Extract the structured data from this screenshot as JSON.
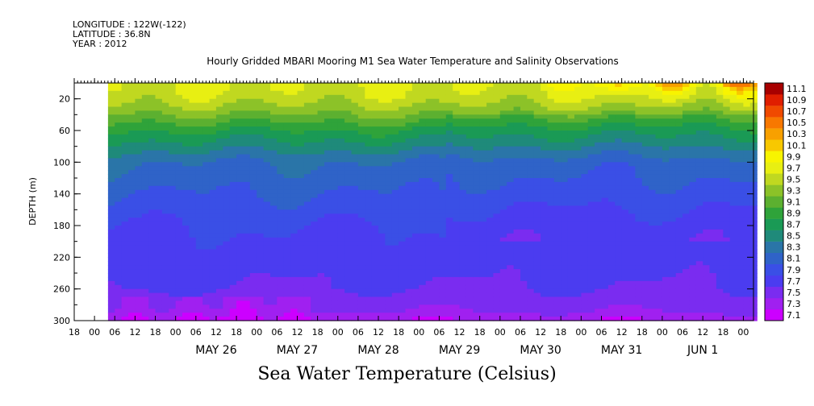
{
  "meta": {
    "longitude": "LONGITUDE : 122W(-122)",
    "latitude": "LATITUDE : 36.8N",
    "year": "YEAR : 2012"
  },
  "title": "Hourly Gridded MBARI Mooring M1 Sea Water Temperature and Salinity Observations",
  "footer": "Sea Water Temperature (Celsius)",
  "chart_data": {
    "type": "heatmap",
    "title": "Hourly Gridded MBARI Mooring M1 Sea Water Temperature and Salinity Observations",
    "xlabel": "",
    "ylabel": "DEPTH (m)",
    "ylim": [
      300,
      0
    ],
    "y_inverted": true,
    "y_ticks": [
      20,
      60,
      100,
      140,
      180,
      220,
      260,
      300
    ],
    "x_hour_labels": [
      "00",
      "06",
      "12",
      "18"
    ],
    "x_days": [
      "MAY 26",
      "MAY 27",
      "MAY 28",
      "MAY 29",
      "MAY 30",
      "MAY 31",
      "JUN  1"
    ],
    "x_range_hours": [
      -30,
      171
    ],
    "data_start_hour": -20,
    "colorbar": {
      "label": "Sea Water Temperature (Celsius)",
      "levels": [
        7.1,
        7.3,
        7.5,
        7.7,
        7.9,
        8.1,
        8.3,
        8.5,
        8.7,
        8.9,
        9.1,
        9.3,
        9.5,
        9.7,
        9.9,
        10.1,
        10.3,
        10.5,
        10.7,
        10.9,
        11.1
      ],
      "colors": [
        "#cc00ff",
        "#a020f0",
        "#7a2cf0",
        "#4b3cf0",
        "#3a4fe6",
        "#2f63c8",
        "#2a75a8",
        "#1f8a7a",
        "#1a9a55",
        "#2fa33a",
        "#5cb030",
        "#8cc228",
        "#c0d820",
        "#e8ef12",
        "#f8f400",
        "#f8c800",
        "#f8a000",
        "#f87800",
        "#f04a00",
        "#e01e00",
        "#a80000"
      ]
    },
    "depth_profile_degC": [
      {
        "depth": 5,
        "temp": 9.7
      },
      {
        "depth": 20,
        "temp": 9.6
      },
      {
        "depth": 40,
        "temp": 9.3
      },
      {
        "depth": 60,
        "temp": 8.9
      },
      {
        "depth": 80,
        "temp": 8.6
      },
      {
        "depth": 100,
        "temp": 8.3
      },
      {
        "depth": 140,
        "temp": 8.1
      },
      {
        "depth": 180,
        "temp": 7.9
      },
      {
        "depth": 220,
        "temp": 7.8
      },
      {
        "depth": 260,
        "temp": 7.7
      },
      {
        "depth": 290,
        "temp": 7.5
      },
      {
        "depth": 300,
        "temp": 7.3
      }
    ]
  }
}
